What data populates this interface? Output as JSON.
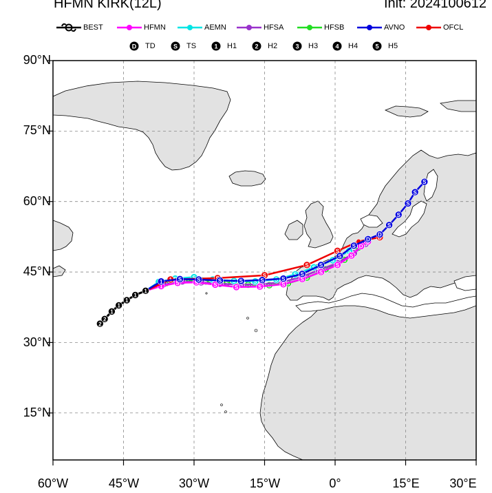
{
  "header": {
    "title": "HFMN KIRK(12L)",
    "init": "Init: 2024100612"
  },
  "legend": {
    "models": [
      {
        "label": "BEST",
        "color": "#000000",
        "icon": "hurricane-symbol-icon"
      },
      {
        "label": "HFMN",
        "color": "#ff00ff"
      },
      {
        "label": "AEMN",
        "color": "#00e5e5"
      },
      {
        "label": "HFSA",
        "color": "#9932cc"
      },
      {
        "label": "HFSB",
        "color": "#22dd22"
      },
      {
        "label": "AVNO",
        "color": "#0000dd"
      },
      {
        "label": "OFCL",
        "color": "#ee0000"
      }
    ],
    "intensity": [
      {
        "symbol": "D",
        "label": "TD"
      },
      {
        "symbol": "S",
        "label": "TS"
      },
      {
        "symbol": "1",
        "label": "H1"
      },
      {
        "symbol": "2",
        "label": "H2"
      },
      {
        "symbol": "3",
        "label": "H3"
      },
      {
        "symbol": "4",
        "label": "H4"
      },
      {
        "symbol": "5",
        "label": "H5"
      }
    ]
  },
  "axes": {
    "y_labels": [
      "90°N",
      "75°N",
      "60°N",
      "45°N",
      "30°N",
      "15°N"
    ],
    "x_labels": [
      "60°W",
      "45°W",
      "30°W",
      "15°W",
      "0°",
      "15°E",
      "30°E"
    ],
    "lon_range": [
      -60,
      30
    ],
    "lat_range": [
      5,
      90
    ],
    "grid": "dashed"
  },
  "tracks": [
    {
      "model": "BEST",
      "color": "#000000",
      "points": [
        {
          "lon": -50.0,
          "lat": 34.0,
          "s": "2"
        },
        {
          "lon": -49.0,
          "lat": 35.0,
          "s": "2"
        },
        {
          "lon": -47.5,
          "lat": 36.6,
          "s": "1"
        },
        {
          "lon": -46.0,
          "lat": 37.9,
          "s": "1"
        },
        {
          "lon": -44.3,
          "lat": 39.0,
          "s": "1"
        },
        {
          "lon": -42.5,
          "lat": 40.1,
          "s": "1"
        },
        {
          "lon": -40.3,
          "lat": 41.0,
          "s": "1"
        }
      ]
    },
    {
      "model": "HFMN",
      "color": "#ff00ff",
      "points": [
        {
          "lon": -40.3,
          "lat": 41.0,
          "s": "1"
        },
        {
          "lon": -37.0,
          "lat": 42.0,
          "s": "1"
        },
        {
          "lon": -33.5,
          "lat": 42.7,
          "s": "S"
        },
        {
          "lon": -29.5,
          "lat": 42.8,
          "s": "S"
        },
        {
          "lon": -25.5,
          "lat": 42.3,
          "s": "S"
        },
        {
          "lon": -21.0,
          "lat": 41.8,
          "s": "S"
        },
        {
          "lon": -16.0,
          "lat": 41.9,
          "s": "S"
        },
        {
          "lon": -11.0,
          "lat": 42.4,
          "s": "S"
        },
        {
          "lon": -7.0,
          "lat": 43.5,
          "s": "S"
        },
        {
          "lon": -3.0,
          "lat": 45.0,
          "s": "S"
        },
        {
          "lon": 0.5,
          "lat": 46.5,
          "s": "S"
        },
        {
          "lon": 3.5,
          "lat": 48.5,
          "s": "S"
        },
        {
          "lon": 5.5,
          "lat": 50.5,
          "s": "D"
        },
        {
          "lon": 7.0,
          "lat": 51.5,
          "s": "D"
        }
      ]
    },
    {
      "model": "AEMN",
      "color": "#00e5e5",
      "points": [
        {
          "lon": -40.3,
          "lat": 41.0,
          "s": "1"
        },
        {
          "lon": -37.5,
          "lat": 42.9,
          "s": "1"
        },
        {
          "lon": -34.0,
          "lat": 43.6,
          "s": "S"
        },
        {
          "lon": -30.0,
          "lat": 43.9,
          "s": "S"
        },
        {
          "lon": -26.0,
          "lat": 43.4,
          "s": "S"
        },
        {
          "lon": -21.5,
          "lat": 43.1,
          "s": "S"
        },
        {
          "lon": -17.0,
          "lat": 43.0,
          "s": "S"
        },
        {
          "lon": -12.5,
          "lat": 43.4,
          "s": "S"
        },
        {
          "lon": -8.5,
          "lat": 44.5,
          "s": "S"
        },
        {
          "lon": -4.5,
          "lat": 46.0,
          "s": "S"
        },
        {
          "lon": -0.5,
          "lat": 47.5,
          "s": "S"
        },
        {
          "lon": 3.0,
          "lat": 49.5,
          "s": "S"
        },
        {
          "lon": 5.0,
          "lat": 51.2,
          "s": "D"
        }
      ]
    },
    {
      "model": "HFSA",
      "color": "#9932cc",
      "points": [
        {
          "lon": -40.3,
          "lat": 41.0,
          "s": "1"
        },
        {
          "lon": -36.5,
          "lat": 42.4,
          "s": "1"
        },
        {
          "lon": -32.5,
          "lat": 43.0,
          "s": "S"
        },
        {
          "lon": -28.5,
          "lat": 42.8,
          "s": "S"
        },
        {
          "lon": -24.5,
          "lat": 42.5,
          "s": "S"
        },
        {
          "lon": -20.0,
          "lat": 42.3,
          "s": "S"
        },
        {
          "lon": -15.5,
          "lat": 42.4,
          "s": "S"
        },
        {
          "lon": -11.0,
          "lat": 42.9,
          "s": "S"
        },
        {
          "lon": -7.0,
          "lat": 44.0,
          "s": "S"
        },
        {
          "lon": -3.5,
          "lat": 45.4,
          "s": "S"
        },
        {
          "lon": 0.5,
          "lat": 46.9,
          "s": "S"
        },
        {
          "lon": 4.0,
          "lat": 49.0,
          "s": "S"
        },
        {
          "lon": 6.5,
          "lat": 51.0,
          "s": "D"
        }
      ]
    },
    {
      "model": "HFSB",
      "color": "#22dd22",
      "points": [
        {
          "lon": -40.3,
          "lat": 41.0,
          "s": "1"
        },
        {
          "lon": -36.0,
          "lat": 42.6,
          "s": "1"
        },
        {
          "lon": -32.0,
          "lat": 43.2,
          "s": "S"
        },
        {
          "lon": -27.5,
          "lat": 43.0,
          "s": "S"
        },
        {
          "lon": -23.0,
          "lat": 42.7,
          "s": "S"
        },
        {
          "lon": -18.5,
          "lat": 42.3,
          "s": "S"
        },
        {
          "lon": -14.0,
          "lat": 42.2,
          "s": "S"
        },
        {
          "lon": -10.0,
          "lat": 42.6,
          "s": "S"
        },
        {
          "lon": -6.0,
          "lat": 43.8,
          "s": "S"
        },
        {
          "lon": -2.0,
          "lat": 45.6,
          "s": "S"
        },
        {
          "lon": 2.0,
          "lat": 47.6,
          "s": "S"
        },
        {
          "lon": 5.0,
          "lat": 50.2,
          "s": "S"
        }
      ]
    },
    {
      "model": "AVNO",
      "color": "#0000dd",
      "points": [
        {
          "lon": -40.3,
          "lat": 41.0,
          "s": "1"
        },
        {
          "lon": -37.0,
          "lat": 43.0,
          "s": "1"
        },
        {
          "lon": -33.0,
          "lat": 43.5,
          "s": "S"
        },
        {
          "lon": -29.0,
          "lat": 43.4,
          "s": "S"
        },
        {
          "lon": -24.5,
          "lat": 43.2,
          "s": "S"
        },
        {
          "lon": -20.0,
          "lat": 43.1,
          "s": "S"
        },
        {
          "lon": -15.5,
          "lat": 43.3,
          "s": "S"
        },
        {
          "lon": -11.0,
          "lat": 43.6,
          "s": "S"
        },
        {
          "lon": -7.0,
          "lat": 44.6,
          "s": "S"
        },
        {
          "lon": -3.0,
          "lat": 46.5,
          "s": "S"
        },
        {
          "lon": 1.0,
          "lat": 48.4,
          "s": "S"
        },
        {
          "lon": 4.0,
          "lat": 50.6,
          "s": "S"
        },
        {
          "lon": 7.0,
          "lat": 52.0,
          "s": "D"
        },
        {
          "lon": 9.5,
          "lat": 53.0,
          "s": "D"
        },
        {
          "lon": 11.5,
          "lat": 55.0,
          "s": "S"
        },
        {
          "lon": 13.5,
          "lat": 57.2,
          "s": "S"
        },
        {
          "lon": 15.5,
          "lat": 59.6,
          "s": "S"
        },
        {
          "lon": 17.0,
          "lat": 62.0,
          "s": "S"
        },
        {
          "lon": 19.0,
          "lat": 64.2,
          "s": "S"
        }
      ]
    },
    {
      "model": "OFCL",
      "color": "#ee0000",
      "points": [
        {
          "lon": -40.3,
          "lat": 41.0,
          "s": "1"
        },
        {
          "lon": -35.0,
          "lat": 43.4,
          "s": "1"
        },
        {
          "lon": -25.0,
          "lat": 43.7,
          "s": "S"
        },
        {
          "lon": -15.0,
          "lat": 44.3,
          "s": "S"
        },
        {
          "lon": -6.0,
          "lat": 46.5,
          "s": "S"
        },
        {
          "lon": 0.5,
          "lat": 49.5,
          "s": "S"
        },
        {
          "lon": 5.0,
          "lat": 51.5,
          "s": ""
        },
        {
          "lon": 9.5,
          "lat": 52.4,
          "s": "D"
        }
      ]
    }
  ]
}
